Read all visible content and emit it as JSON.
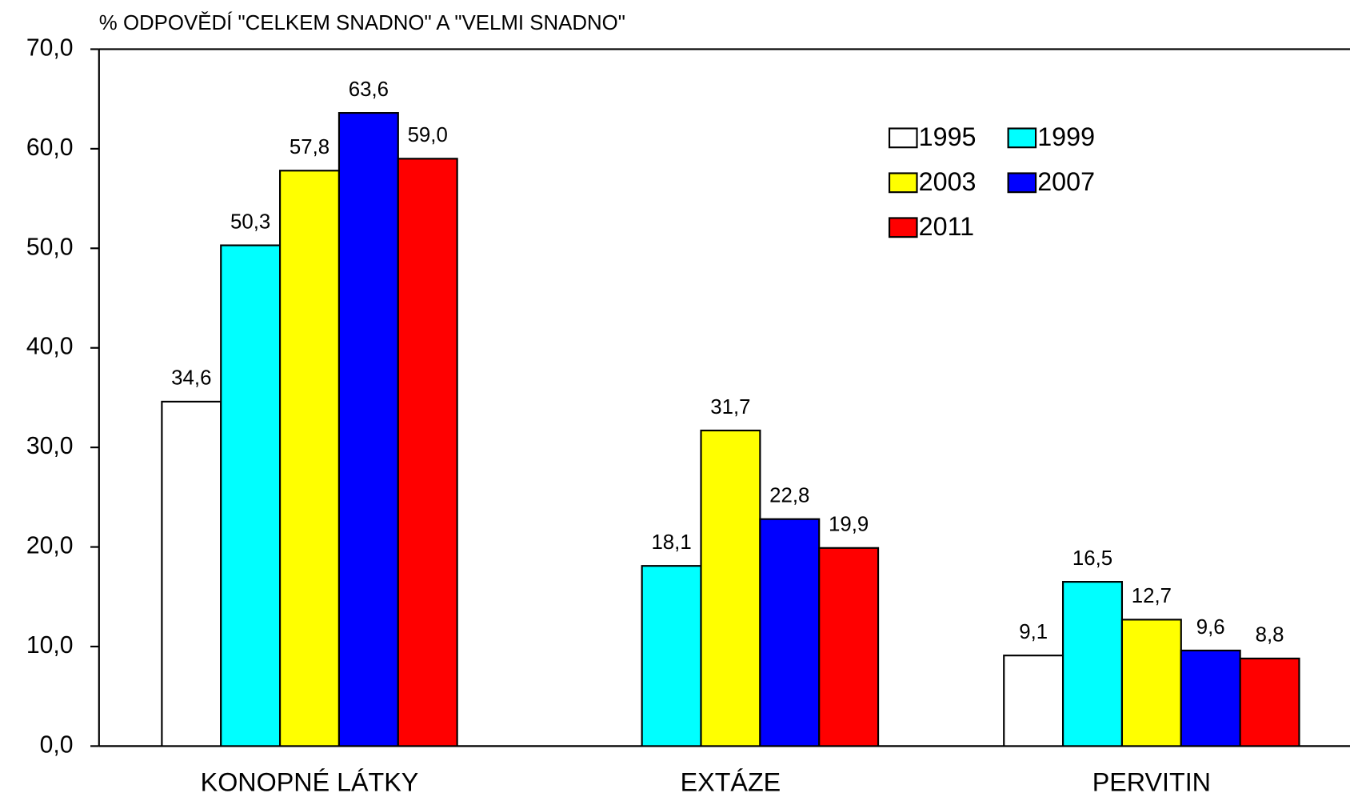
{
  "chart_data": {
    "type": "bar",
    "title": "% ODPOVĚDÍ \"CELKEM SNADNO\" A \"VELMI SNADNO\"",
    "categories": [
      "KONOPNÉ LÁTKY",
      "EXTÁZE",
      "PERVITIN"
    ],
    "series": [
      {
        "name": "1995",
        "color": "#ffffff",
        "values": [
          34.6,
          null,
          9.1
        ],
        "value_labels": [
          "34,6",
          null,
          "9,1"
        ]
      },
      {
        "name": "1999",
        "color": "#00ffff",
        "values": [
          50.3,
          18.1,
          16.5
        ],
        "value_labels": [
          "50,3",
          "18,1",
          "16,5"
        ]
      },
      {
        "name": "2003",
        "color": "#ffff00",
        "values": [
          57.8,
          31.7,
          12.7
        ],
        "value_labels": [
          "57,8",
          "31,7",
          "12,7"
        ]
      },
      {
        "name": "2007",
        "color": "#0000ff",
        "values": [
          63.6,
          22.8,
          9.6
        ],
        "value_labels": [
          "63,6",
          "22,8",
          "9,6"
        ]
      },
      {
        "name": "2011",
        "color": "#ff0000",
        "values": [
          59.0,
          19.9,
          8.8
        ],
        "value_labels": [
          "59,0",
          "19,9",
          "8,8"
        ]
      }
    ],
    "ylim": [
      0,
      70
    ],
    "yticks": [
      {
        "value": 0,
        "label": "0,0"
      },
      {
        "value": 10,
        "label": "10,0"
      },
      {
        "value": 20,
        "label": "20,0"
      },
      {
        "value": 30,
        "label": "30,0"
      },
      {
        "value": 40,
        "label": "40,0"
      },
      {
        "value": 50,
        "label": "50,0"
      },
      {
        "value": 60,
        "label": "60,0"
      },
      {
        "value": 70,
        "label": "70,0"
      }
    ],
    "legend": "upper right"
  }
}
